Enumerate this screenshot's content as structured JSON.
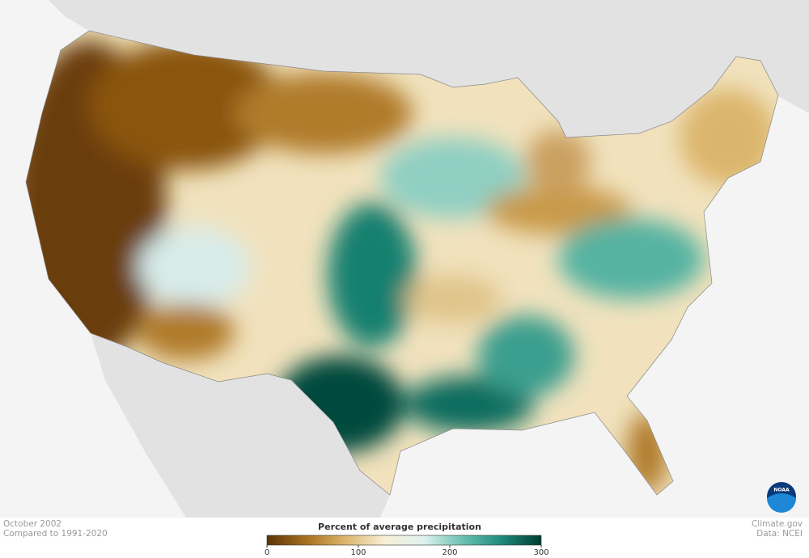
{
  "map": {
    "period": "October 2002",
    "baseline": "Compared to 1991-2020",
    "credit": "Climate.gov",
    "source": "Data: NCEI",
    "logo": "NOAA"
  },
  "legend": {
    "title": "Percent of average precipitation",
    "range": [
      0,
      300
    ],
    "ticks": [
      0,
      100,
      200,
      300
    ],
    "colors": [
      "#5a3306",
      "#a8701e",
      "#dcb56c",
      "#f8efd6",
      "#dff2ef",
      "#69c0b0",
      "#1d8a7c",
      "#003c32"
    ]
  }
}
